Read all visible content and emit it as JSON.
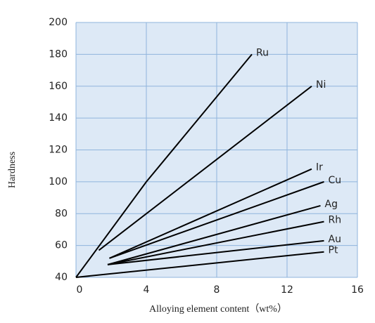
{
  "chart_data": {
    "type": "line",
    "xlabel": "Alloying element content（wt%）",
    "ylabel": "Hardness",
    "xlim": [
      0,
      16
    ],
    "xticks": [
      0,
      4,
      8,
      12,
      16
    ],
    "ylim": [
      40,
      200
    ],
    "yticks": [
      40,
      60,
      80,
      100,
      120,
      140,
      160,
      180,
      200
    ],
    "grid": true,
    "series": [
      {
        "name": "Ru",
        "color": "#000000",
        "x": [
          0,
          4,
          10
        ],
        "values": [
          40,
          100,
          180
        ]
      },
      {
        "name": "Ni",
        "color": "#000000",
        "x": [
          1.3,
          13.4
        ],
        "values": [
          57,
          160
        ]
      },
      {
        "name": "Ir",
        "color": "#000000",
        "x": [
          1.9,
          13.4
        ],
        "values": [
          52,
          108
        ]
      },
      {
        "name": "Cu",
        "color": "#000000",
        "x": [
          1.9,
          14.1
        ],
        "values": [
          52,
          100
        ]
      },
      {
        "name": "Ag",
        "color": "#000000",
        "x": [
          1.8,
          13.9
        ],
        "values": [
          48,
          85
        ]
      },
      {
        "name": "Rh",
        "color": "#000000",
        "x": [
          1.8,
          14.1
        ],
        "values": [
          48,
          75
        ]
      },
      {
        "name": "Au",
        "color": "#000000",
        "x": [
          1.8,
          14.1
        ],
        "values": [
          48,
          63
        ]
      },
      {
        "name": "Pt",
        "color": "#000000",
        "x": [
          0,
          14.1
        ],
        "values": [
          40,
          56
        ]
      }
    ]
  }
}
